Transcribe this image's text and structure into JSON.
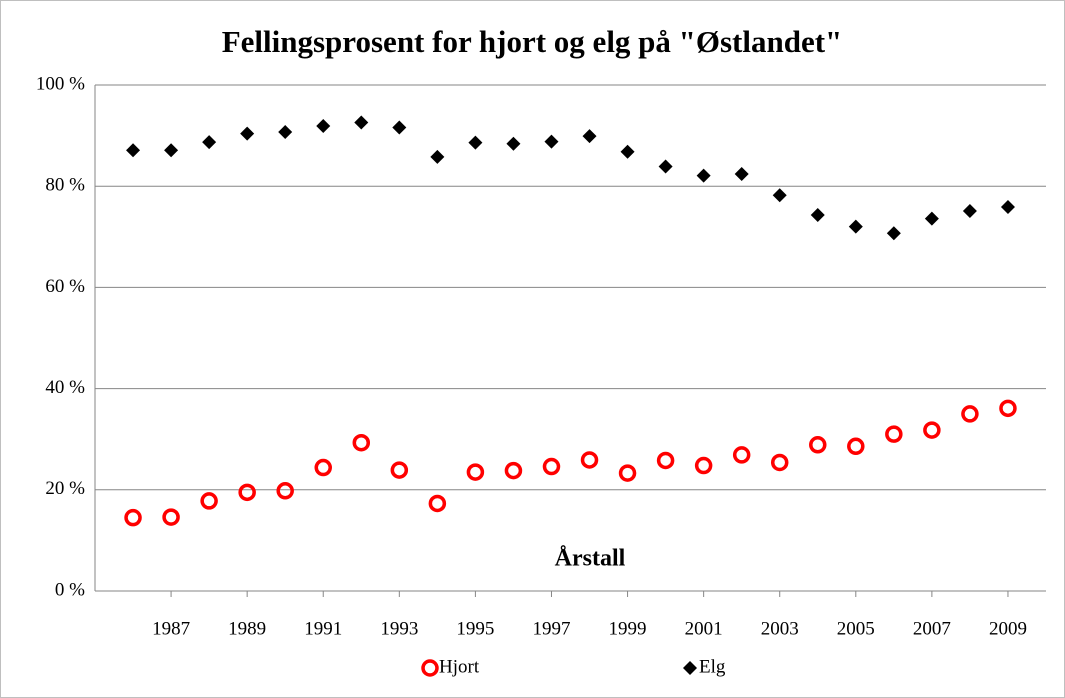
{
  "chart_data": {
    "type": "scatter",
    "title": "Fellingsprosent for hjort og elg på \"Østlandet\"",
    "x_label": "Årstall",
    "x": [
      1986,
      1987,
      1988,
      1989,
      1990,
      1991,
      1992,
      1993,
      1994,
      1995,
      1996,
      1997,
      1998,
      1999,
      2000,
      2001,
      2002,
      2003,
      2004,
      2005,
      2006,
      2007,
      2008,
      2009
    ],
    "series": [
      {
        "name": "Hjort",
        "color": "#ff0000",
        "marker": "ring",
        "values": [
          14.5,
          14.6,
          17.8,
          19.5,
          19.8,
          24.4,
          29.3,
          23.9,
          17.3,
          23.5,
          23.8,
          24.6,
          25.9,
          23.3,
          25.8,
          24.8,
          26.9,
          25.4,
          28.9,
          28.6,
          31.0,
          31.8,
          35.0,
          36.1
        ]
      },
      {
        "name": "Elg",
        "color": "#000000",
        "marker": "diamond",
        "values": [
          87.1,
          87.1,
          88.7,
          90.4,
          90.7,
          91.9,
          92.6,
          91.6,
          85.8,
          88.6,
          88.4,
          88.8,
          89.9,
          86.8,
          83.9,
          82.1,
          82.4,
          78.2,
          74.3,
          72.0,
          70.7,
          73.6,
          75.1,
          75.9
        ]
      }
    ],
    "xlim": [
      1985,
      2010
    ],
    "xticks": [
      1987,
      1989,
      1991,
      1993,
      1995,
      1997,
      1999,
      2001,
      2003,
      2005,
      2007,
      2009
    ],
    "ylim": [
      0,
      100
    ],
    "yticks": [
      {
        "value": 0,
        "label": "0 %"
      },
      {
        "value": 20,
        "label": "20 %"
      },
      {
        "value": 40,
        "label": "40 %"
      },
      {
        "value": 60,
        "label": "60 %"
      },
      {
        "value": 80,
        "label": "80 %"
      },
      {
        "value": 100,
        "label": "100 %"
      }
    ],
    "grid": true,
    "legend": "bottom"
  }
}
